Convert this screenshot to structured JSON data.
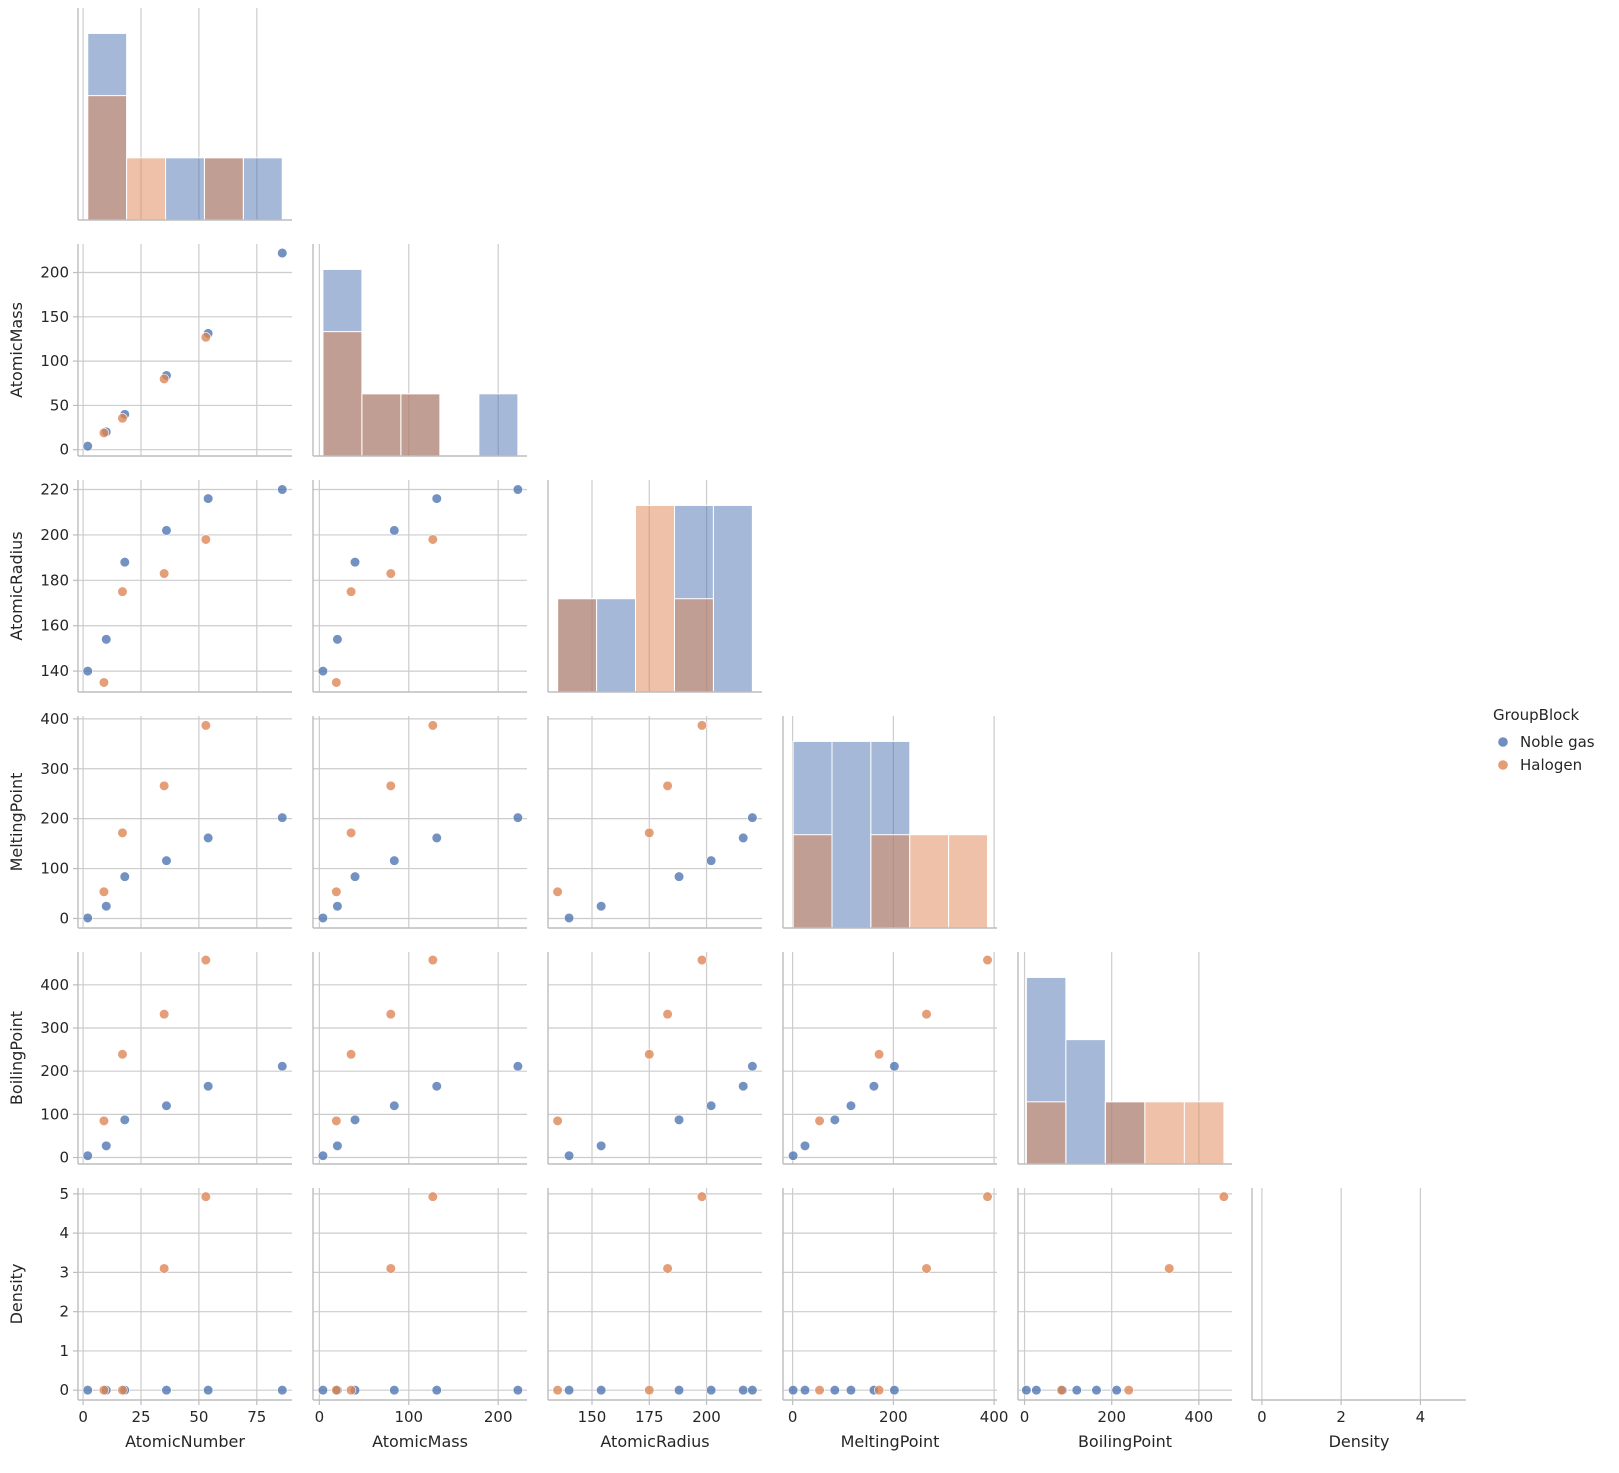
{
  "chart_data": {
    "type": "scatter",
    "kind": "pairplot-lower-corner-with-diagonal-histograms",
    "variables": [
      "AtomicNumber",
      "AtomicMass",
      "AtomicRadius",
      "MeltingPoint",
      "BoilingPoint",
      "Density"
    ],
    "hue": "GroupBlock",
    "legend": {
      "title": "GroupBlock",
      "entries": [
        "Noble gas",
        "Halogen"
      ],
      "position": "right-center"
    },
    "colors": {
      "Noble gas": "#4c72b0",
      "Halogen": "#dd8452"
    },
    "ranges": {
      "AtomicNumber": [
        -2.2,
        90.2
      ],
      "AtomicMass": [
        -7.1,
        232.2
      ],
      "AtomicRadius": [
        130.8,
        224.2
      ],
      "MeltingPoint": [
        -19.1,
        405.7
      ],
      "BoilingPoint": [
        -15.0,
        476.0
      ],
      "Density": [
        -0.25,
        5.15
      ]
    },
    "ticks": {
      "AtomicNumber": [
        0,
        25,
        50,
        75
      ],
      "AtomicMass": [
        0,
        100,
        200
      ],
      "AtomicRadius": [
        150,
        175,
        200
      ],
      "MeltingPoint": [
        0,
        200,
        400
      ],
      "BoilingPoint": [
        0,
        200,
        400
      ],
      "Density": [
        0,
        2,
        4
      ]
    },
    "row_ticks": {
      "AtomicMass": [
        0,
        50,
        100,
        150,
        200
      ],
      "AtomicRadius": [
        140,
        160,
        180,
        200,
        220
      ],
      "MeltingPoint": [
        0,
        100,
        200,
        300,
        400
      ],
      "BoilingPoint": [
        0,
        100,
        200,
        300,
        400
      ],
      "Density": [
        0,
        1,
        2,
        3,
        4,
        5
      ]
    },
    "series": [
      {
        "name": "Noble gas",
        "points": [
          {
            "AtomicNumber": 2,
            "AtomicMass": 4.0,
            "AtomicRadius": 140,
            "MeltingPoint": 1.0,
            "BoilingPoint": 4.2,
            "Density": 0.0
          },
          {
            "AtomicNumber": 10,
            "AtomicMass": 20.2,
            "AtomicRadius": 154,
            "MeltingPoint": 24.6,
            "BoilingPoint": 27.1,
            "Density": 0.0
          },
          {
            "AtomicNumber": 18,
            "AtomicMass": 39.9,
            "AtomicRadius": 188,
            "MeltingPoint": 83.8,
            "BoilingPoint": 87.3,
            "Density": 0.0
          },
          {
            "AtomicNumber": 36,
            "AtomicMass": 83.8,
            "AtomicRadius": 202,
            "MeltingPoint": 115.8,
            "BoilingPoint": 119.9,
            "Density": 0.0
          },
          {
            "AtomicNumber": 54,
            "AtomicMass": 131.3,
            "AtomicRadius": 216,
            "MeltingPoint": 161.4,
            "BoilingPoint": 165.1,
            "Density": 0.0
          },
          {
            "AtomicNumber": 86,
            "AtomicMass": 222.0,
            "AtomicRadius": 220,
            "MeltingPoint": 202.0,
            "BoilingPoint": 211.3,
            "Density": 0.0
          }
        ]
      },
      {
        "name": "Halogen",
        "points": [
          {
            "AtomicNumber": 9,
            "AtomicMass": 19.0,
            "AtomicRadius": 135,
            "MeltingPoint": 53.5,
            "BoilingPoint": 85.0,
            "Density": 0.0
          },
          {
            "AtomicNumber": 17,
            "AtomicMass": 35.5,
            "AtomicRadius": 175,
            "MeltingPoint": 171.6,
            "BoilingPoint": 239.1,
            "Density": 0.0
          },
          {
            "AtomicNumber": 35,
            "AtomicMass": 79.9,
            "AtomicRadius": 183,
            "MeltingPoint": 265.8,
            "BoilingPoint": 332.0,
            "Density": 3.1
          },
          {
            "AtomicNumber": 53,
            "AtomicMass": 126.9,
            "AtomicRadius": 198,
            "MeltingPoint": 386.9,
            "BoilingPoint": 457.4,
            "Density": 4.93
          }
        ]
      }
    ],
    "histograms": [
      {
        "variable": "AtomicNumber",
        "bins": [
          2,
          18.8,
          35.6,
          52.4,
          69.2,
          86
        ],
        "counts": {
          "Noble gas": [
            3,
            0,
            1,
            1,
            1
          ],
          "Halogen": [
            2,
            1,
            0,
            1,
            0
          ]
        }
      },
      {
        "variable": "AtomicMass",
        "bins": [
          4.0,
          47.6,
          91.2,
          134.8,
          178.4,
          222.0
        ],
        "counts": {
          "Noble gas": [
            3,
            1,
            1,
            0,
            1
          ],
          "Halogen": [
            2,
            1,
            1,
            0,
            0
          ]
        }
      },
      {
        "variable": "AtomicRadius",
        "bins": [
          135,
          152,
          169,
          186,
          203,
          220
        ],
        "counts": {
          "Noble gas": [
            1,
            1,
            0,
            2,
            2
          ],
          "Halogen": [
            1,
            0,
            2,
            1,
            0
          ]
        }
      },
      {
        "variable": "MeltingPoint",
        "bins": [
          1.0,
          78.18,
          155.36,
          232.54,
          309.72,
          386.9
        ],
        "counts": {
          "Noble gas": [
            2,
            2,
            2,
            0,
            0
          ],
          "Halogen": [
            1,
            0,
            1,
            1,
            1
          ]
        }
      },
      {
        "variable": "BoilingPoint",
        "bins": [
          4.2,
          94.84,
          185.48,
          276.12,
          366.76,
          457.4
        ],
        "counts": {
          "Noble gas": [
            3,
            2,
            1,
            0,
            0
          ],
          "Halogen": [
            1,
            0,
            1,
            1,
            1
          ]
        }
      },
      {
        "variable": "Density",
        "bins": [],
        "counts": {}
      }
    ],
    "grid": true
  }
}
